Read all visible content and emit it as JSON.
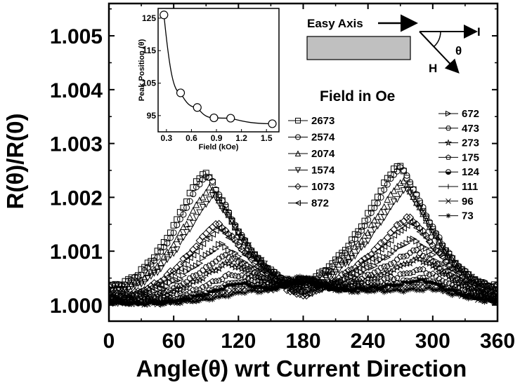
{
  "chart_data": {
    "type": "scatter",
    "xlabel": "Angle(θ) wrt Current Direction",
    "ylabel": "R(θ)/R(0)",
    "xlim": [
      0,
      360
    ],
    "ylim": [
      0.9997,
      1.0056
    ],
    "xticks": [
      "0",
      "60",
      "120",
      "180",
      "240",
      "300",
      "360"
    ],
    "yticks": [
      "1.000",
      "1.001",
      "1.002",
      "1.003",
      "1.004",
      "1.005"
    ],
    "legend_title": "Field in Oe",
    "legend_placement": "upper-right",
    "series": [
      {
        "name": "2673",
        "marker": "square",
        "peak": 0.00245,
        "p1": 88,
        "p2": 268,
        "dip": -5e-05
      },
      {
        "name": "2574",
        "marker": "circle",
        "peak": 0.0024,
        "p1": 90,
        "p2": 270,
        "dip": -8e-05
      },
      {
        "name": "2074",
        "marker": "triangle-up",
        "peak": 0.00215,
        "p1": 93,
        "p2": 272,
        "dip": -0.0001
      },
      {
        "name": "1574",
        "marker": "triangle-down",
        "peak": 0.002,
        "p1": 96,
        "p2": 275,
        "dip": -0.00015
      },
      {
        "name": "1073",
        "marker": "diamond",
        "peak": 0.0015,
        "p1": 100,
        "p2": 278,
        "dip": -0.0002
      },
      {
        "name": "872",
        "marker": "triangle-left",
        "peak": 0.0014,
        "p1": 102,
        "p2": 280,
        "dip": -0.00015
      },
      {
        "name": "672",
        "marker": "triangle-right",
        "peak": 0.0011,
        "p1": 104,
        "p2": 282,
        "dip": -5e-05
      },
      {
        "name": "473",
        "marker": "hexagon",
        "peak": 0.0009,
        "p1": 108,
        "p2": 285,
        "dip": 0.00015
      },
      {
        "name": "273",
        "marker": "star",
        "peak": 0.00075,
        "p1": 110,
        "p2": 288,
        "dip": 0.0001
      },
      {
        "name": "175",
        "marker": "pentagon",
        "peak": 0.00055,
        "p1": 115,
        "p2": 290,
        "dip": 0.0002
      },
      {
        "name": "124",
        "marker": "half-circle",
        "peak": 0.0004,
        "p1": 120,
        "p2": 292,
        "dip": 0.0002
      },
      {
        "name": "111",
        "marker": "plus",
        "peak": 0.00035,
        "p1": 122,
        "p2": 295,
        "dip": 0.00025
      },
      {
        "name": "96",
        "marker": "cross",
        "peak": 0.00028,
        "p1": 126,
        "p2": 297,
        "dip": 0.00025
      },
      {
        "name": "73",
        "marker": "asterisk",
        "peak": 0.00022,
        "p1": 130,
        "p2": 300,
        "dip": 0.0003
      }
    ],
    "inset": {
      "type": "line",
      "xlabel": "Field (kOe)",
      "ylabel": "Peak Position (θ)",
      "xlim": [
        0.2,
        1.65
      ],
      "ylim": [
        90,
        128
      ],
      "xticks": [
        "0.3",
        "0.6",
        "0.9",
        "1.2",
        "1.5"
      ],
      "yticks": [
        "95",
        "105",
        "115",
        "125"
      ],
      "x": [
        0.27,
        0.47,
        0.67,
        0.87,
        1.07,
        1.57
      ],
      "y": [
        126,
        102,
        97.5,
        94.3,
        94.2,
        92.5
      ]
    },
    "schematic": {
      "easy_axis_label": "Easy Axis",
      "current_label": "I",
      "field_label": "H",
      "angle_label": "θ"
    }
  }
}
